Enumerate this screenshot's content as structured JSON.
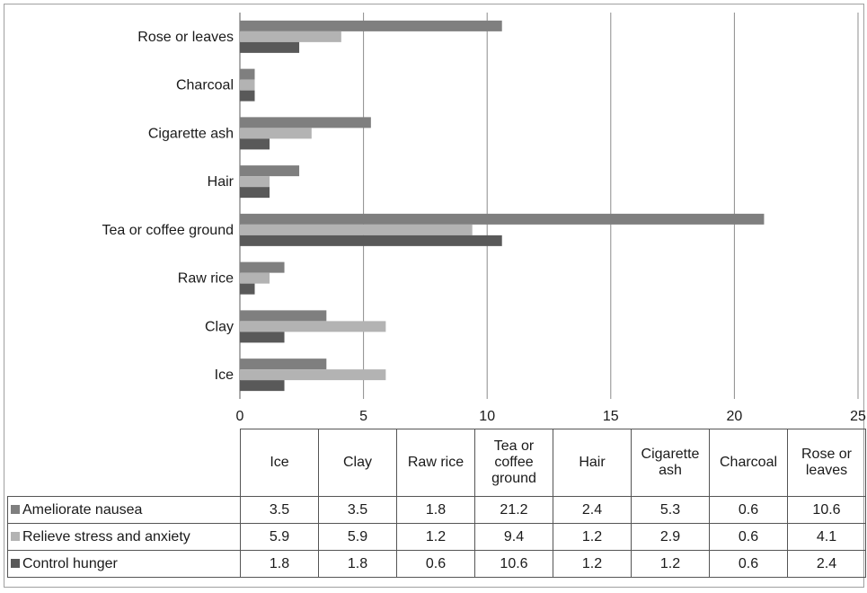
{
  "chart_data": {
    "type": "bar",
    "orientation": "horizontal",
    "categories": [
      "Ice",
      "Clay",
      "Raw  rice",
      "Tea or coffee ground",
      "Hair",
      "Cigarette ash",
      "Charcoal",
      "Rose or leaves"
    ],
    "series": [
      {
        "name": "Ameliorate nausea",
        "color": "#7f7f7f",
        "values": [
          3.5,
          3.5,
          1.8,
          21.2,
          2.4,
          5.3,
          0.6,
          10.6
        ]
      },
      {
        "name": "Relieve stress and anxiety",
        "color": "#b3b3b3",
        "values": [
          5.9,
          5.9,
          1.2,
          9.4,
          1.2,
          2.9,
          0.6,
          4.1
        ]
      },
      {
        "name": "Control  hunger",
        "color": "#595959",
        "values": [
          1.8,
          1.8,
          0.6,
          10.6,
          1.2,
          1.2,
          0.6,
          2.4
        ]
      }
    ],
    "xlim": [
      0,
      25
    ],
    "x_ticks": [
      "0",
      "5",
      "10",
      "15",
      "20",
      "25"
    ],
    "grid": "vertical",
    "legend": "data-table-below",
    "table": {
      "headers": [
        "Ice",
        "Clay",
        "Raw rice",
        "Tea or coffee ground",
        "Hair",
        "Cigarette ash",
        "Charcoal",
        "Rose or leaves"
      ],
      "rows": [
        {
          "label": "Ameliorate nausea",
          "cells": [
            "3.5",
            "3.5",
            "1.8",
            "21.2",
            "2.4",
            "5.3",
            "0.6",
            "10.6"
          ]
        },
        {
          "label": "Relieve stress and anxiety",
          "cells": [
            "5.9",
            "5.9",
            "1.2",
            "9.4",
            "1.2",
            "2.9",
            "0.6",
            "4.1"
          ]
        },
        {
          "label": "Control  hunger",
          "cells": [
            "1.8",
            "1.8",
            "0.6",
            "10.6",
            "1.2",
            "1.2",
            "0.6",
            "2.4"
          ]
        }
      ]
    }
  }
}
